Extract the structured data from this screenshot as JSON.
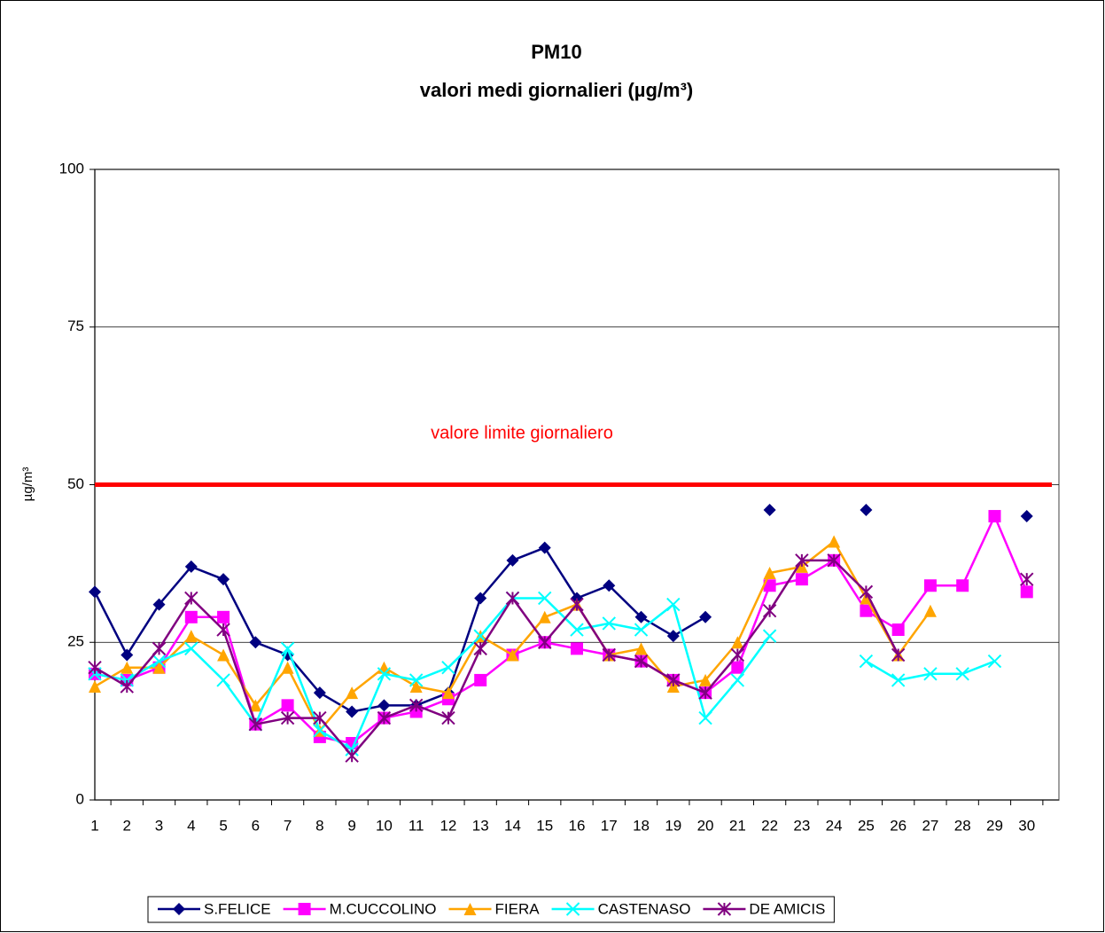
{
  "chart_data": {
    "type": "line",
    "title": "PM10",
    "subtitle": "valori medi giornalieri (µg/m³)",
    "y_label": "µg/m³",
    "categories": [
      "1",
      "2",
      "3",
      "4",
      "5",
      "6",
      "7",
      "8",
      "9",
      "10",
      "11",
      "12",
      "13",
      "14",
      "15",
      "16",
      "17",
      "18",
      "19",
      "20",
      "21",
      "22",
      "23",
      "24",
      "25",
      "26",
      "27",
      "28",
      "29",
      "30"
    ],
    "series": [
      {
        "name": "S.FELICE",
        "color": "#000080",
        "marker": "diamond",
        "values": [
          33,
          23,
          31,
          37,
          35,
          25,
          23,
          17,
          14,
          15,
          15,
          17,
          32,
          38,
          40,
          32,
          34,
          29,
          26,
          29,
          null,
          46,
          null,
          null,
          46,
          null,
          null,
          null,
          null,
          45
        ]
      },
      {
        "name": "M.CUCCOLINO",
        "color": "#ff00ff",
        "marker": "square",
        "values": [
          20,
          19,
          21,
          29,
          29,
          12,
          15,
          10,
          9,
          13,
          14,
          16,
          19,
          23,
          25,
          24,
          23,
          22,
          19,
          17,
          21,
          34,
          35,
          38,
          30,
          27,
          34,
          34,
          45,
          33
        ]
      },
      {
        "name": "FIERA",
        "color": "#ffa500",
        "marker": "triangle",
        "values": [
          18,
          21,
          21,
          26,
          23,
          15,
          21,
          11,
          17,
          21,
          18,
          17,
          26,
          23,
          29,
          31,
          23,
          24,
          18,
          19,
          25,
          36,
          37,
          41,
          32,
          23,
          30,
          null,
          null,
          null
        ]
      },
      {
        "name": "CASTENASO",
        "color": "#00ffff",
        "marker": "x",
        "values": [
          20,
          19,
          22,
          24,
          19,
          12,
          24,
          11,
          8,
          20,
          19,
          21,
          26,
          32,
          32,
          27,
          28,
          27,
          31,
          13,
          19,
          26,
          null,
          null,
          22,
          19,
          20,
          20,
          22,
          null
        ]
      },
      {
        "name": "DE AMICIS",
        "color": "#800080",
        "marker": "star",
        "values": [
          21,
          18,
          24,
          32,
          27,
          12,
          13,
          13,
          7,
          13,
          15,
          13,
          24,
          32,
          25,
          31,
          23,
          22,
          19,
          17,
          23,
          30,
          38,
          38,
          33,
          23,
          null,
          null,
          null,
          35
        ]
      }
    ],
    "threshold": {
      "value": 50,
      "label": "valore limite giornaliero",
      "color": "#ff0000"
    },
    "ylim": [
      0,
      100
    ],
    "yticks": [
      0,
      25,
      50,
      75,
      100
    ],
    "grid": true,
    "legend": "bottom"
  }
}
